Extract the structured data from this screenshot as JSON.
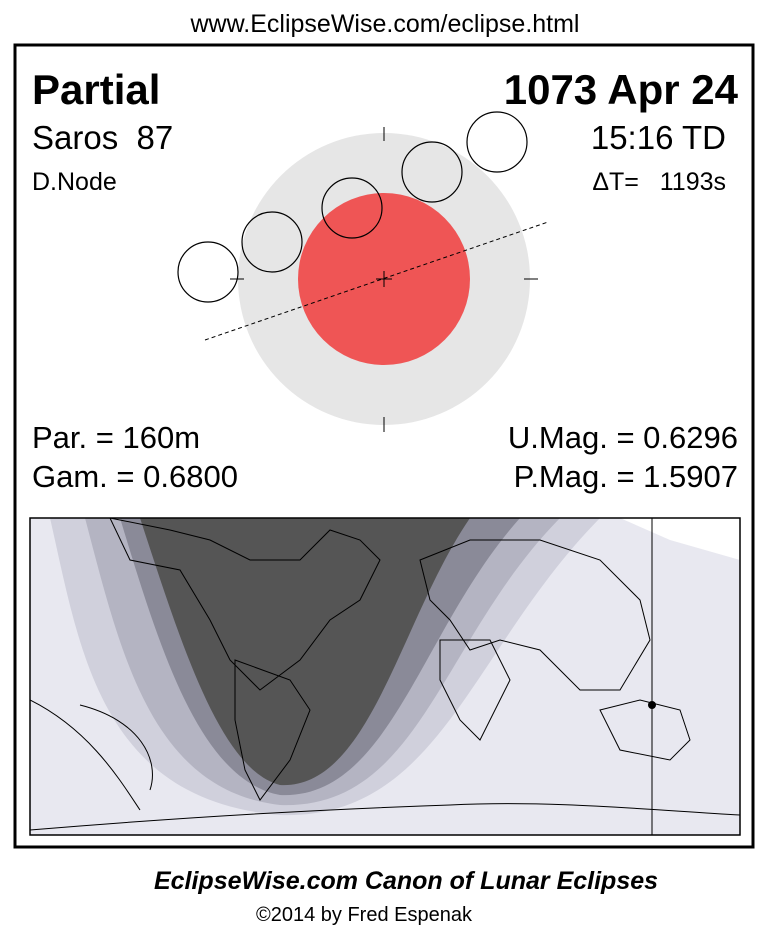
{
  "header": {
    "url": "www.EclipseWise.com/eclipse.html"
  },
  "eclipse": {
    "type": "Partial",
    "date": "1073 Apr 24",
    "saros": "Saros  87",
    "time": "15:16 TD",
    "node": "D.Node",
    "delta_t": "ΔT=   1193s",
    "duration": "Par. = 160m",
    "umbral_magnitude": "U.Mag. = 0.6296",
    "gamma": "Gam. = 0.6800",
    "penumbral_magnitude": "P.Mag. = 1.5907"
  },
  "footer": {
    "title": "EclipseWise.com Canon of Lunar Eclipses",
    "copyright": "©2014 by Fred Espenak"
  }
}
